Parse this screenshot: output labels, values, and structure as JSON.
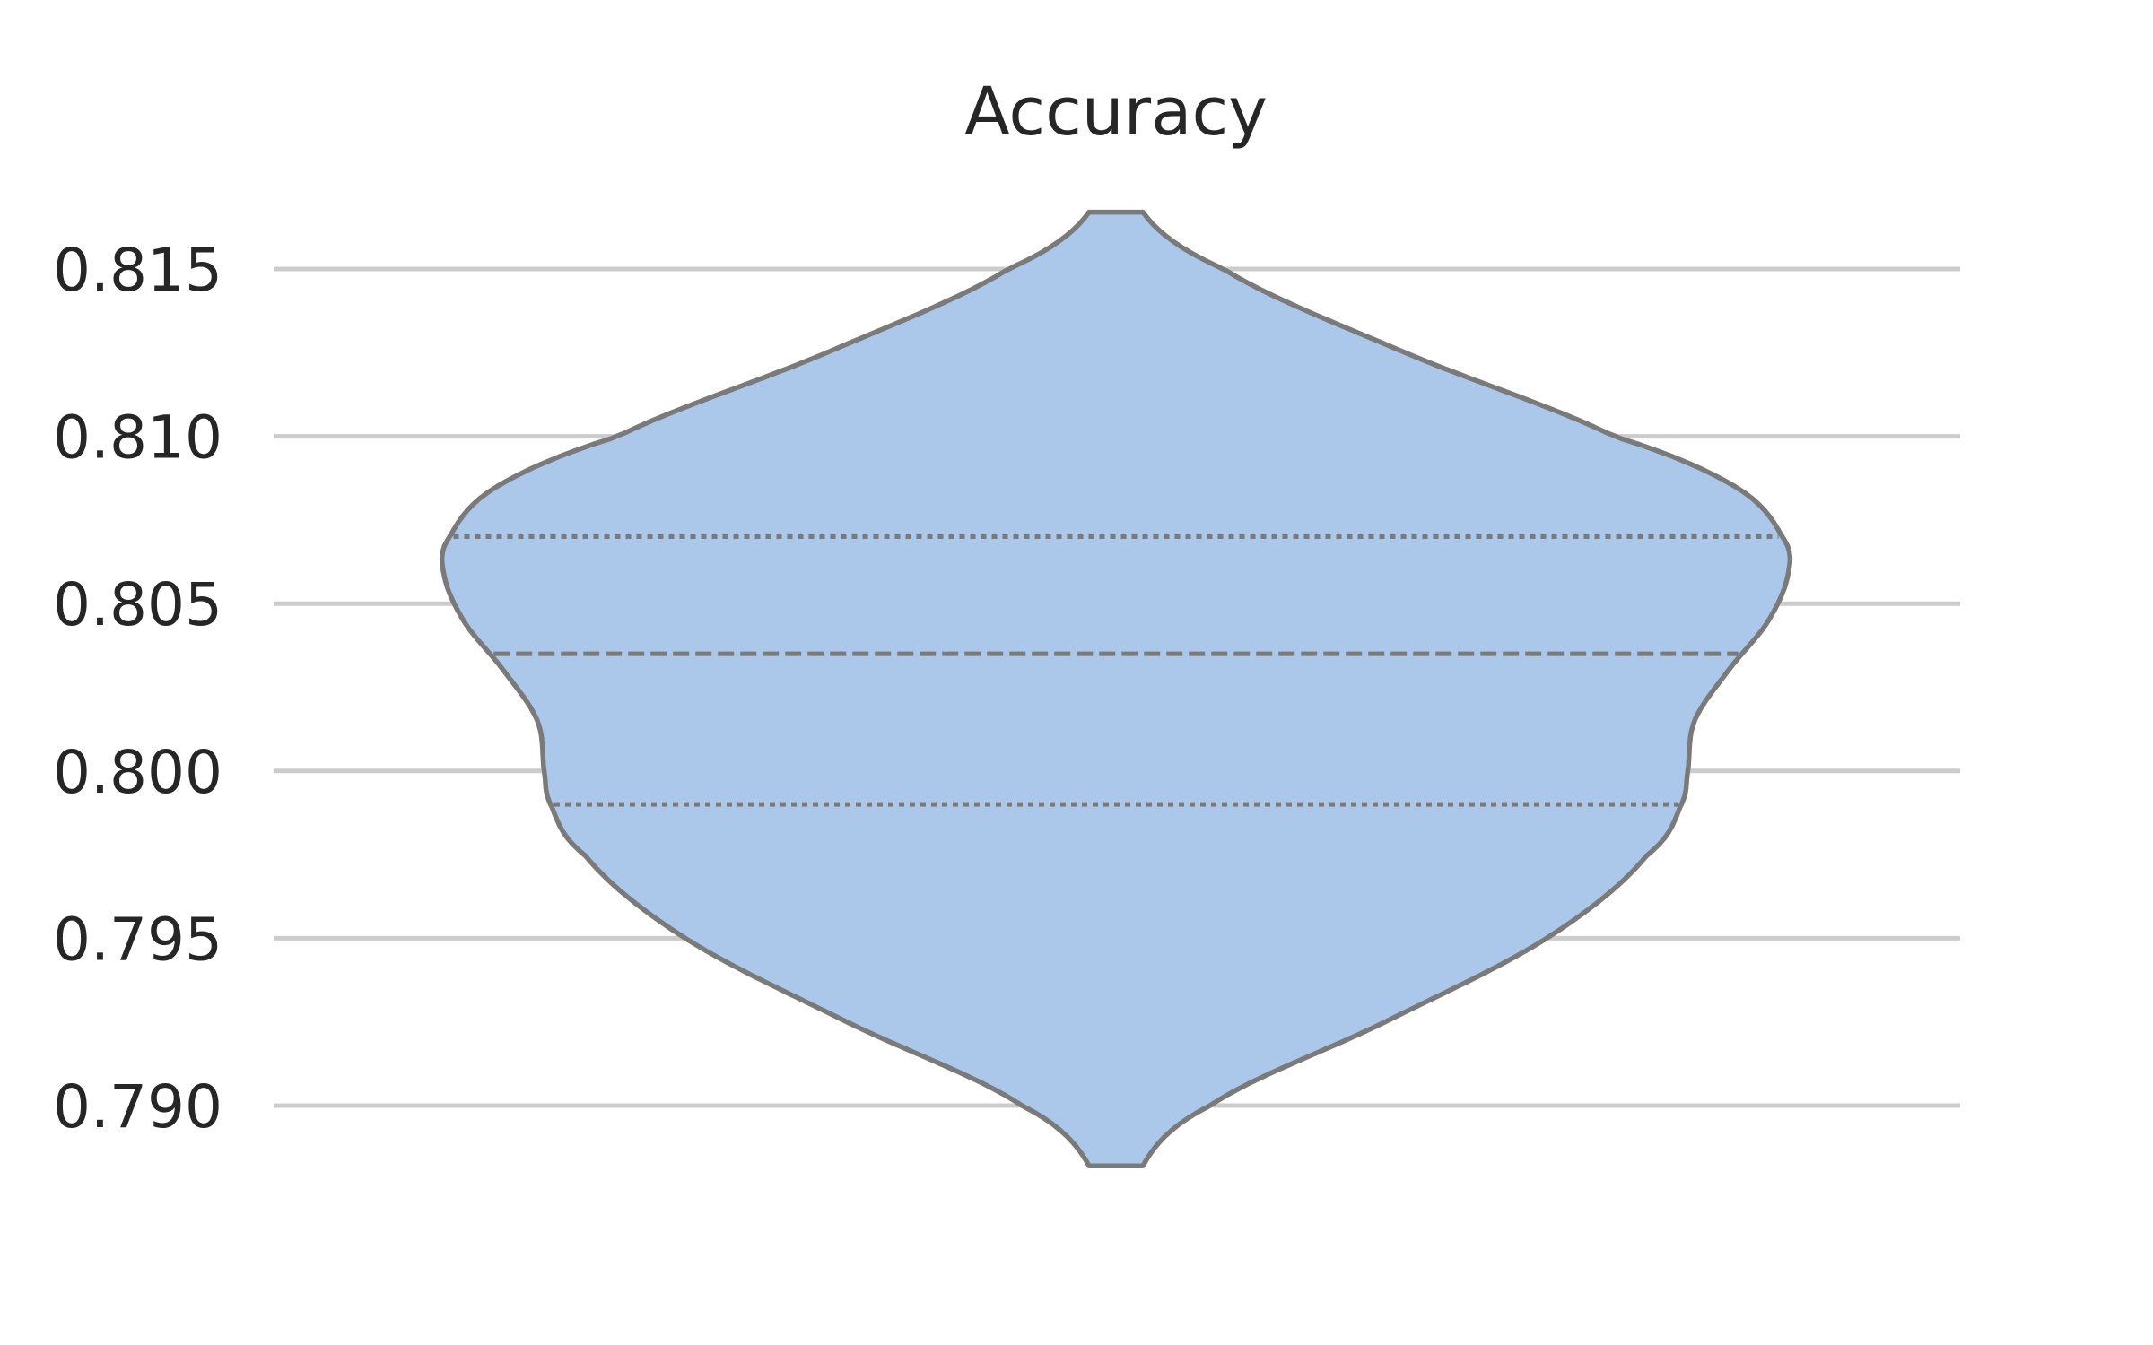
{
  "chart_data": {
    "type": "violin",
    "title": "Accuracy",
    "xlabel": "",
    "ylabel": "",
    "ylim": [
      0.7885,
      0.8168
    ],
    "yticks": [
      {
        "value": 0.79,
        "label": "0.790"
      },
      {
        "value": 0.795,
        "label": "0.795"
      },
      {
        "value": 0.8,
        "label": "0.800"
      },
      {
        "value": 0.805,
        "label": "0.805"
      },
      {
        "value": 0.81,
        "label": "0.810"
      },
      {
        "value": 0.815,
        "label": "0.815"
      }
    ],
    "grid": "horizontal",
    "violin": {
      "min": 0.7882,
      "max": 0.8167,
      "q1": 0.799,
      "median": 0.8035,
      "q3": 0.807,
      "density_profile": [
        [
          0.7882,
          0.04
        ],
        [
          0.79,
          0.14
        ],
        [
          0.7925,
          0.4
        ],
        [
          0.795,
          0.64
        ],
        [
          0.7975,
          0.79
        ],
        [
          0.799,
          0.84
        ],
        [
          0.8,
          0.85
        ],
        [
          0.8015,
          0.86
        ],
        [
          0.803,
          0.91
        ],
        [
          0.8045,
          0.97
        ],
        [
          0.806,
          1.0
        ],
        [
          0.807,
          0.99
        ],
        [
          0.8085,
          0.92
        ],
        [
          0.81,
          0.74
        ],
        [
          0.8125,
          0.43
        ],
        [
          0.815,
          0.16
        ],
        [
          0.8167,
          0.04
        ]
      ]
    },
    "colors": {
      "fill": "#abc8eb",
      "line": "#7a7a7a",
      "grid": "#cccccc",
      "text": "#262626"
    }
  }
}
